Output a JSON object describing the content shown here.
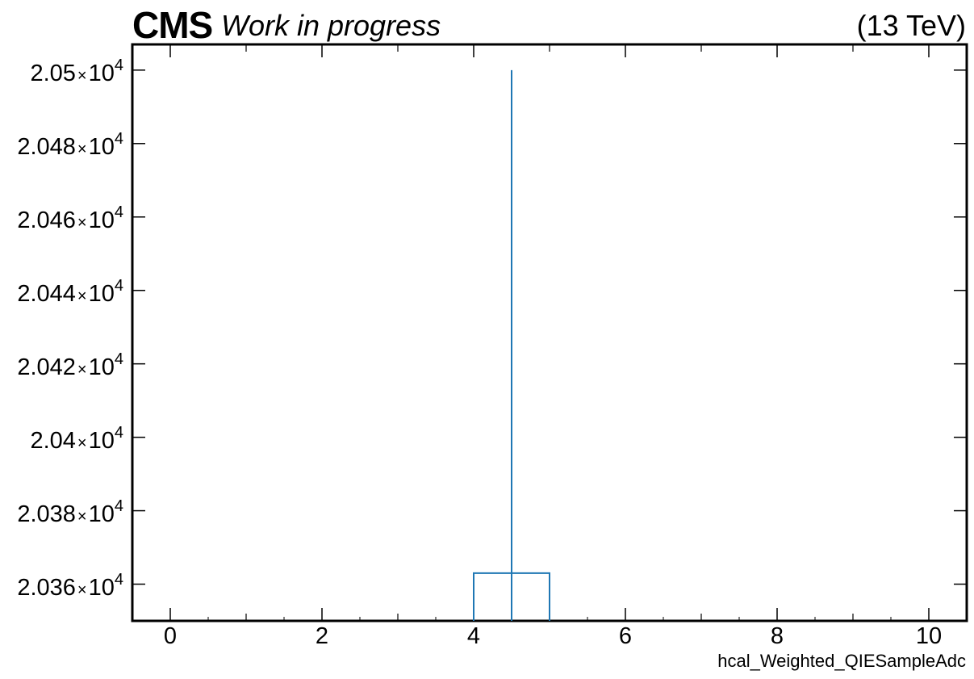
{
  "header": {
    "experiment": "CMS",
    "status": "Work in progress",
    "energy": "(13 TeV)"
  },
  "chart_data": {
    "type": "bar",
    "xlabel": "hcal_Weighted_QIESampleAdc",
    "ylabel": "",
    "xlim": [
      -0.5,
      10.5
    ],
    "ylim": [
      20350,
      20507
    ],
    "x_ticks": [
      0,
      2,
      4,
      6,
      8,
      10
    ],
    "x_tick_labels": [
      "0",
      "2",
      "4",
      "6",
      "8",
      "10"
    ],
    "y_ticks": [
      20360,
      20380,
      20400,
      20420,
      20440,
      20460,
      20480,
      20500
    ],
    "y_tick_labels": [
      {
        "mantissa": "2.036",
        "times": "×",
        "base": "10",
        "exponent": "4"
      },
      {
        "mantissa": "2.038",
        "times": "×",
        "base": "10",
        "exponent": "4"
      },
      {
        "mantissa": "2.04",
        "times": "×",
        "base": "10",
        "exponent": "4"
      },
      {
        "mantissa": "2.042",
        "times": "×",
        "base": "10",
        "exponent": "4"
      },
      {
        "mantissa": "2.044",
        "times": "×",
        "base": "10",
        "exponent": "4"
      },
      {
        "mantissa": "2.046",
        "times": "×",
        "base": "10",
        "exponent": "4"
      },
      {
        "mantissa": "2.048",
        "times": "×",
        "base": "10",
        "exponent": "4"
      },
      {
        "mantissa": "2.05",
        "times": "×",
        "base": "10",
        "exponent": "4"
      }
    ],
    "bins": [
      {
        "x_low": 4,
        "x_high": 5,
        "value": 20363,
        "error_low": 20350,
        "error_high": 20500
      }
    ],
    "grid": false,
    "colors": {
      "series": "#1f77b4",
      "axes": "#000000"
    }
  }
}
